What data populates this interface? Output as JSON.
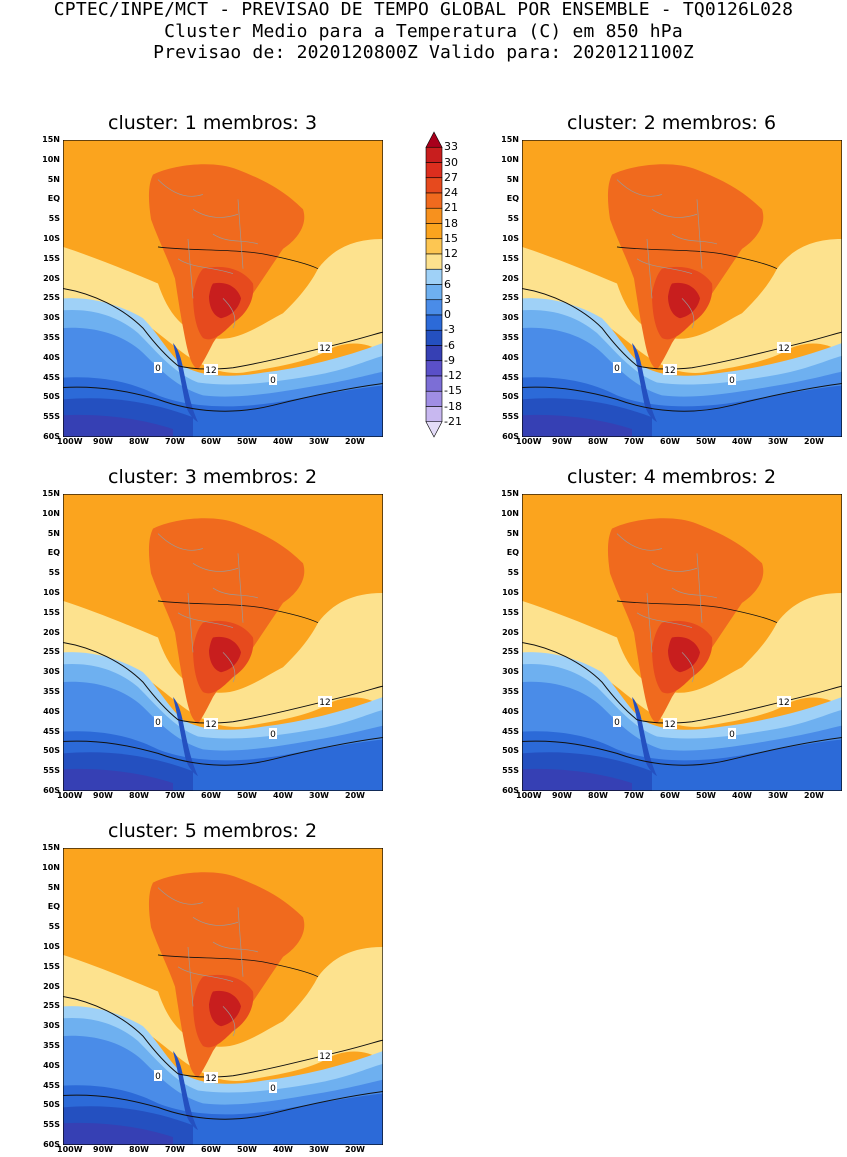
{
  "header": {
    "line1": "CPTEC/INPE/MCT - PREVISAO DE TEMPO GLOBAL POR ENSEMBLE - TQ0126L028",
    "line2": "Cluster Medio para a Temperatura (C) em 850 hPa",
    "line3": "Previsao de: 2020120800Z   Valido para: 2020121100Z"
  },
  "panels": [
    {
      "title": "cluster: 1  membros: 3",
      "contour_labels": [
        "0",
        "12",
        "0",
        "12"
      ]
    },
    {
      "title": "cluster: 2  membros: 6",
      "contour_labels": [
        "0",
        "12",
        "0",
        "12"
      ]
    },
    {
      "title": "cluster: 3  membros: 2",
      "contour_labels": [
        "0",
        "12",
        "0",
        "12"
      ]
    },
    {
      "title": "cluster: 4  membros: 2",
      "contour_labels": [
        "0",
        "12",
        "0",
        "12"
      ]
    },
    {
      "title": "cluster: 5  membros: 2",
      "contour_labels": [
        "0",
        "12",
        "0",
        "12"
      ]
    }
  ],
  "lat_labels": [
    "15N",
    "10N",
    "5N",
    "EQ",
    "5S",
    "10S",
    "15S",
    "20S",
    "25S",
    "30S",
    "35S",
    "40S",
    "45S",
    "50S",
    "55S",
    "60S"
  ],
  "lon_labels": [
    "100W",
    "90W",
    "80W",
    "70W",
    "60W",
    "50W",
    "40W",
    "30W",
    "20W"
  ],
  "colorbar": {
    "labels": [
      "33",
      "30",
      "27",
      "24",
      "21",
      "18",
      "15",
      "12",
      "9",
      "6",
      "3",
      "0",
      "-3",
      "-6",
      "-9",
      "-12",
      "-15",
      "-18",
      "-21"
    ],
    "colors": [
      "#a8001c",
      "#c81e1e",
      "#dc2e1e",
      "#e64a1e",
      "#f06a1e",
      "#f7911e",
      "#fba41e",
      "#fdc652",
      "#fde28e",
      "#9fd1f7",
      "#6eb0f0",
      "#4a8ce8",
      "#2c6ad8",
      "#2450c0",
      "#3640b4",
      "#5a50c8",
      "#7c6ed6",
      "#a08ee4",
      "#c8b8f0",
      "#e4dcf8"
    ]
  },
  "map_colors": {
    "ocean_deep": "#3640b4",
    "ocean_cold": "#2450c0",
    "ocean_mid": "#2c6ad8",
    "ocean_cool": "#4a8ce8",
    "ocean_light": "#6eb0f0",
    "ocean_pale": "#9fd1f7",
    "warm_pale": "#fde28e",
    "warm_mid": "#fdc652",
    "warm": "#fba41e",
    "land_hot": "#f06a1e",
    "land_hotter": "#e64a1e",
    "land_hottest": "#c81e1e",
    "border_gray": "#9a9a9a"
  }
}
